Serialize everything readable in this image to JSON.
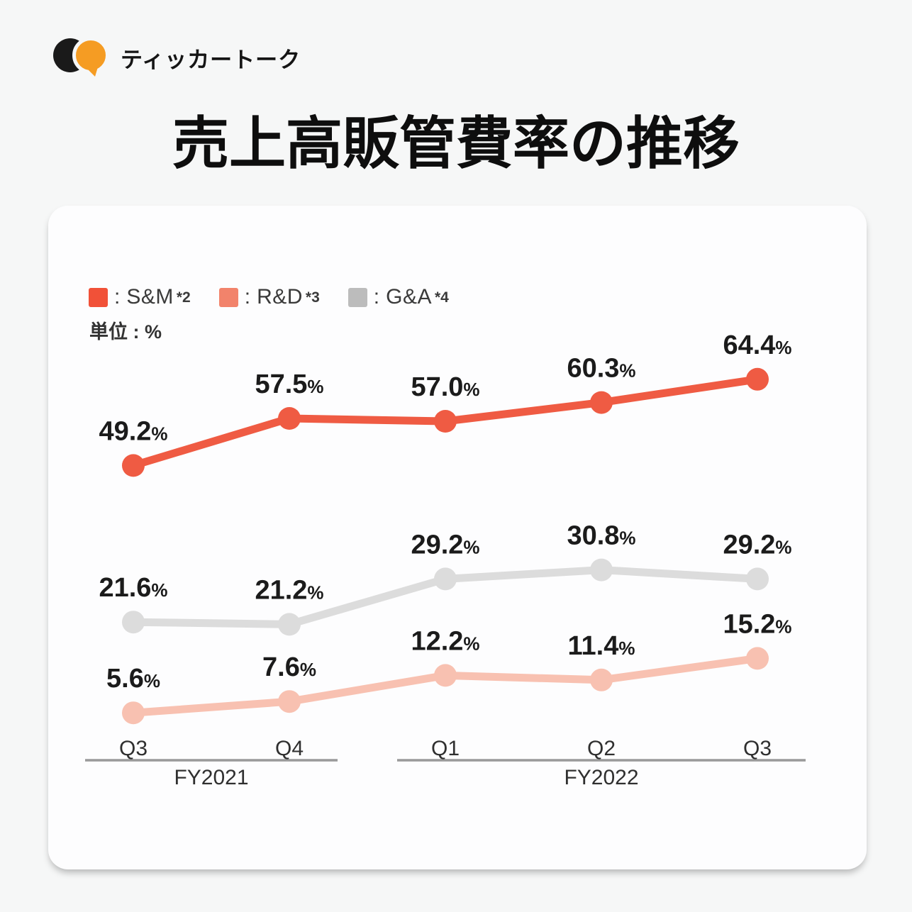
{
  "brand": {
    "name": "ティッカートーク",
    "logo_colors": {
      "black": "#1a1a1a",
      "orange": "#f59c23"
    }
  },
  "title": "売上高販管費率の推移",
  "chart_data": {
    "type": "line",
    "title": "売上高販管費率の推移",
    "unit_label": "単位 : %",
    "value_suffix": "%",
    "grid": false,
    "legend_position": "top-left",
    "categories": [
      "Q3",
      "Q4",
      "Q1",
      "Q2",
      "Q3"
    ],
    "category_groups": [
      {
        "label": "FY2021",
        "from": 0,
        "to": 1
      },
      {
        "label": "FY2022",
        "from": 2,
        "to": 4
      }
    ],
    "series": [
      {
        "name": "S&M",
        "footnote": "*2",
        "values": [
          49.2,
          57.5,
          57.0,
          60.3,
          64.4
        ],
        "line_color": "#ef5b43",
        "legend_color": "#f15138"
      },
      {
        "name": "R&D",
        "footnote": "*3",
        "values": [
          5.6,
          7.6,
          12.2,
          11.4,
          15.2
        ],
        "line_color": "#f8c1b1",
        "legend_color": "#f2836b"
      },
      {
        "name": "G&A",
        "footnote": "*4",
        "values": [
          21.6,
          21.2,
          29.2,
          30.8,
          29.2
        ],
        "line_color": "#dcdcdc",
        "legend_color": "#bcbcbc"
      }
    ]
  }
}
